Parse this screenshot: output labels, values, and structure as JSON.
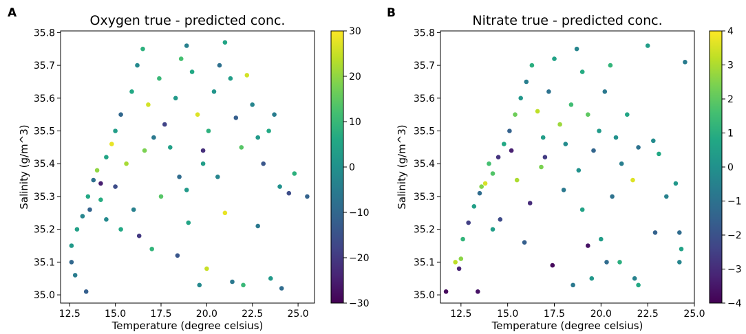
{
  "chart_data": [
    {
      "panel": "A",
      "type": "scatter",
      "title": "Oxygen true - predicted conc.",
      "xlabel": "Temperature (degree celsius)",
      "ylabel": "Salinity (g/m^3)",
      "xlim": [
        12.0,
        25.9
      ],
      "ylim": [
        34.975,
        35.805
      ],
      "xticks": [
        "12.5",
        "15.0",
        "17.5",
        "20.0",
        "22.5",
        "25.0"
      ],
      "yticks": [
        "35.0",
        "35.1",
        "35.2",
        "35.3",
        "35.4",
        "35.5",
        "35.6",
        "35.7",
        "35.8"
      ],
      "colorbar": {
        "min": -30,
        "max": 30,
        "ticks": [
          "30",
          "20",
          "10",
          "0",
          "−10",
          "−20",
          "−30"
        ]
      },
      "points": [
        [
          12.6,
          35.1,
          -10
        ],
        [
          12.8,
          35.06,
          -5
        ],
        [
          13.4,
          35.01,
          -12
        ],
        [
          12.6,
          35.15,
          2
        ],
        [
          12.9,
          35.2,
          4
        ],
        [
          13.2,
          35.24,
          -3
        ],
        [
          13.5,
          35.3,
          6
        ],
        [
          13.8,
          35.35,
          -8
        ],
        [
          14.0,
          35.38,
          20
        ],
        [
          14.2,
          35.34,
          -25
        ],
        [
          14.5,
          35.42,
          5
        ],
        [
          14.8,
          35.46,
          28
        ],
        [
          15.0,
          35.5,
          3
        ],
        [
          15.3,
          35.55,
          -10
        ],
        [
          15.6,
          35.4,
          22
        ],
        [
          15.9,
          35.62,
          6
        ],
        [
          16.2,
          35.7,
          -2
        ],
        [
          16.5,
          35.75,
          8
        ],
        [
          16.8,
          35.58,
          26
        ],
        [
          17.1,
          35.48,
          -6
        ],
        [
          17.4,
          35.66,
          10
        ],
        [
          17.7,
          35.52,
          -18
        ],
        [
          18.0,
          35.45,
          4
        ],
        [
          18.3,
          35.6,
          2
        ],
        [
          18.6,
          35.72,
          12
        ],
        [
          18.9,
          35.76,
          -4
        ],
        [
          19.2,
          35.68,
          6
        ],
        [
          19.5,
          35.55,
          27
        ],
        [
          19.8,
          35.44,
          -22
        ],
        [
          20.1,
          35.5,
          8
        ],
        [
          20.4,
          35.62,
          1
        ],
        [
          20.7,
          35.7,
          -8
        ],
        [
          21.0,
          35.77,
          5
        ],
        [
          21.3,
          35.66,
          3
        ],
        [
          21.6,
          35.54,
          -12
        ],
        [
          21.9,
          35.45,
          14
        ],
        [
          22.2,
          35.67,
          26
        ],
        [
          22.5,
          35.58,
          -3
        ],
        [
          22.8,
          35.48,
          2
        ],
        [
          23.1,
          35.4,
          -14
        ],
        [
          23.4,
          35.5,
          6
        ],
        [
          23.7,
          35.55,
          -5
        ],
        [
          24.0,
          35.33,
          0
        ],
        [
          24.5,
          35.31,
          -16
        ],
        [
          24.8,
          35.37,
          8
        ],
        [
          25.5,
          35.3,
          -11
        ],
        [
          22.0,
          35.03,
          10
        ],
        [
          21.4,
          35.04,
          -6
        ],
        [
          19.6,
          35.03,
          -2
        ],
        [
          20.0,
          35.08,
          25
        ],
        [
          18.4,
          35.12,
          -14
        ],
        [
          17.0,
          35.14,
          9
        ],
        [
          16.3,
          35.18,
          -20
        ],
        [
          15.3,
          35.2,
          6
        ],
        [
          14.5,
          35.23,
          -2
        ],
        [
          24.1,
          35.02,
          -9
        ],
        [
          23.5,
          35.05,
          2
        ],
        [
          22.8,
          35.21,
          -6
        ],
        [
          21.0,
          35.25,
          28
        ],
        [
          19.0,
          35.22,
          5
        ],
        [
          16.0,
          35.26,
          -4
        ],
        [
          17.5,
          35.3,
          14
        ],
        [
          18.5,
          35.36,
          -9
        ],
        [
          19.8,
          35.4,
          3
        ],
        [
          16.6,
          35.44,
          18
        ],
        [
          15.0,
          35.33,
          -16
        ],
        [
          14.2,
          35.29,
          7
        ],
        [
          13.6,
          35.26,
          -11
        ],
        [
          18.9,
          35.32,
          2
        ],
        [
          20.6,
          35.36,
          -3
        ]
      ]
    },
    {
      "panel": "B",
      "type": "scatter",
      "title": "Nitrate true - predicted conc.",
      "xlabel": "Temperature (degree celsius)",
      "ylabel": "Salinity (g/m^3)",
      "xlim": [
        11.4,
        25.0
      ],
      "ylim": [
        34.975,
        35.805
      ],
      "xticks": [
        "12.5",
        "15.0",
        "17.5",
        "20.0",
        "22.5",
        "25.0"
      ],
      "yticks": [
        "35.0",
        "35.1",
        "35.2",
        "35.3",
        "35.4",
        "35.5",
        "35.6",
        "35.7",
        "35.8"
      ],
      "colorbar": {
        "min": -4,
        "max": 4,
        "ticks": [
          "4",
          "3",
          "2",
          "1",
          "0",
          "−1",
          "−2",
          "−3",
          "−4"
        ]
      },
      "points": [
        [
          11.7,
          35.01,
          -3.8
        ],
        [
          13.4,
          35.01,
          -3.6
        ],
        [
          12.2,
          35.1,
          3.2
        ],
        [
          12.5,
          35.11,
          2.6
        ],
        [
          12.4,
          35.08,
          -3.2
        ],
        [
          12.6,
          35.17,
          1.2
        ],
        [
          12.9,
          35.22,
          -2.5
        ],
        [
          13.2,
          35.27,
          0.5
        ],
        [
          13.5,
          35.31,
          -1.2
        ],
        [
          13.8,
          35.34,
          3.5
        ],
        [
          14.2,
          35.37,
          1.8
        ],
        [
          14.5,
          35.42,
          -2.8
        ],
        [
          14.8,
          35.46,
          0.8
        ],
        [
          15.1,
          35.5,
          -1.5
        ],
        [
          15.4,
          35.55,
          2.2
        ],
        [
          15.7,
          35.6,
          0.2
        ],
        [
          16.0,
          35.65,
          -0.6
        ],
        [
          16.3,
          35.7,
          1.0
        ],
        [
          16.6,
          35.56,
          3.2
        ],
        [
          16.9,
          35.48,
          0.4
        ],
        [
          17.2,
          35.62,
          -1.0
        ],
        [
          17.5,
          35.72,
          0.6
        ],
        [
          17.8,
          35.52,
          2.8
        ],
        [
          18.1,
          35.46,
          -0.2
        ],
        [
          18.4,
          35.58,
          1.5
        ],
        [
          18.7,
          35.75,
          -0.4
        ],
        [
          19.0,
          35.68,
          0.9
        ],
        [
          19.3,
          35.55,
          2.0
        ],
        [
          19.6,
          35.44,
          -1.4
        ],
        [
          19.9,
          35.5,
          0.3
        ],
        [
          20.2,
          35.62,
          -0.8
        ],
        [
          20.5,
          35.7,
          1.2
        ],
        [
          20.8,
          35.48,
          0.0
        ],
        [
          21.1,
          35.4,
          -0.6
        ],
        [
          21.4,
          35.55,
          0.7
        ],
        [
          21.7,
          35.35,
          3.6
        ],
        [
          22.0,
          35.45,
          -1.0
        ],
        [
          22.5,
          35.76,
          0.4
        ],
        [
          22.8,
          35.47,
          -0.2
        ],
        [
          23.1,
          35.43,
          0.8
        ],
        [
          23.5,
          35.3,
          -0.5
        ],
        [
          24.0,
          35.34,
          0.2
        ],
        [
          24.2,
          35.19,
          -1.2
        ],
        [
          24.3,
          35.14,
          0.6
        ],
        [
          24.2,
          35.1,
          -0.4
        ],
        [
          24.5,
          35.71,
          -0.7
        ],
        [
          17.4,
          35.09,
          -3.8
        ],
        [
          19.3,
          35.15,
          -3.6
        ],
        [
          18.5,
          35.03,
          -0.8
        ],
        [
          19.5,
          35.05,
          0.2
        ],
        [
          20.3,
          35.1,
          -1.2
        ],
        [
          21.0,
          35.1,
          1.0
        ],
        [
          21.8,
          35.05,
          -0.5
        ],
        [
          22.0,
          35.03,
          0.8
        ],
        [
          22.9,
          35.19,
          -1.5
        ],
        [
          20.0,
          35.17,
          0.4
        ],
        [
          16.2,
          35.28,
          -3.0
        ],
        [
          14.6,
          35.23,
          -2.2
        ],
        [
          15.5,
          35.35,
          3.0
        ],
        [
          16.8,
          35.39,
          2.4
        ],
        [
          18.0,
          35.32,
          -0.8
        ],
        [
          19.0,
          35.26,
          0.6
        ],
        [
          15.2,
          35.44,
          -3.3
        ],
        [
          14.0,
          35.4,
          1.6
        ],
        [
          13.6,
          35.33,
          2.5
        ],
        [
          17.0,
          35.42,
          -2.6
        ],
        [
          18.8,
          35.38,
          0.0
        ],
        [
          20.6,
          35.3,
          -1.0
        ],
        [
          15.9,
          35.16,
          -1.6
        ],
        [
          14.2,
          35.2,
          0.4
        ]
      ]
    }
  ]
}
